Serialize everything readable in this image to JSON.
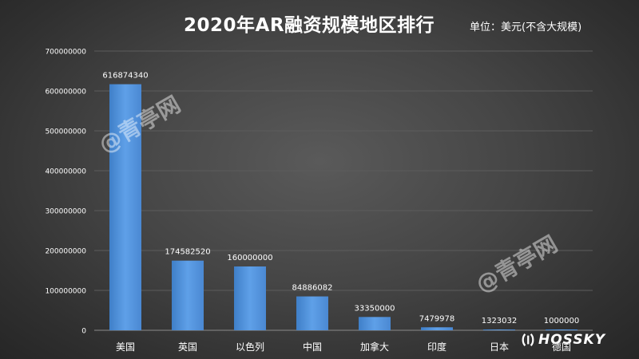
{
  "header": {
    "title": "2020年AR融资规模地区排行",
    "unit": "单位：美元(不含大规模)"
  },
  "watermarks": [
    "@青亭网",
    "@青亭网"
  ],
  "brand": {
    "name": "HOSSKY"
  },
  "colors": {
    "bar": "#4e8fd6",
    "bar_light": "#6aa8ec",
    "grid": "#5c5c5c",
    "text": "#ffffff"
  },
  "chart_data": {
    "type": "bar",
    "title": "2020年AR融资规模地区排行",
    "xlabel": "",
    "ylabel": "",
    "categories": [
      "美国",
      "英国",
      "以色列",
      "中国",
      "加拿大",
      "印度",
      "日本",
      "德国"
    ],
    "values": [
      616874340,
      174582520,
      160000000,
      84886082,
      33350000,
      7479978,
      1323032,
      1000000
    ],
    "ylim": [
      0,
      700000000
    ],
    "yticks": [
      "0",
      "100000000",
      "200000000",
      "300000000",
      "400000000",
      "500000000",
      "600000000",
      "700000000"
    ],
    "grid": true,
    "legend": "none",
    "data_labels": true
  }
}
